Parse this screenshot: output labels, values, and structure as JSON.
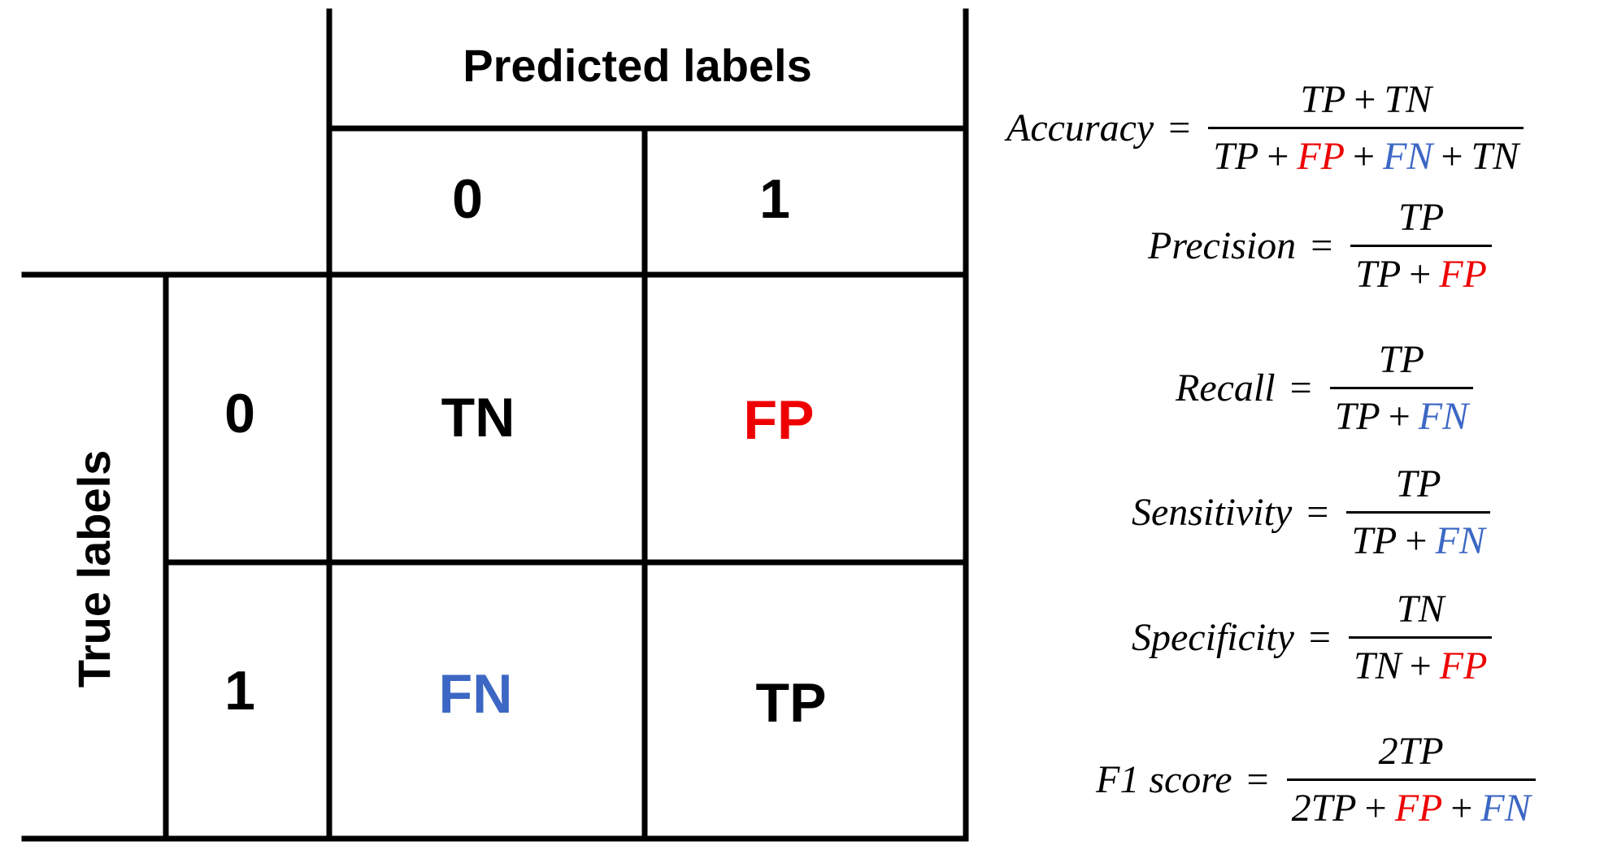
{
  "colors": {
    "fp": "#ee0000",
    "fn": "#3c67c4",
    "default": "#000000"
  },
  "matrix": {
    "predicted_header": "Predicted labels",
    "true_header": "True labels",
    "pred_0": "0",
    "pred_1": "1",
    "true_0": "0",
    "true_1": "1",
    "cell_tn": "TN",
    "cell_fp": "FP",
    "cell_fn": "FN",
    "cell_tp": "TP"
  },
  "formulas": [
    {
      "name": "Accuracy",
      "num": [
        {
          "t": "TP"
        },
        {
          "op": "+"
        },
        {
          "t": "TN"
        }
      ],
      "den": [
        {
          "t": "TP"
        },
        {
          "op": "+"
        },
        {
          "t": "FP",
          "c": "fp"
        },
        {
          "op": "+"
        },
        {
          "t": "FN",
          "c": "fn"
        },
        {
          "op": "+"
        },
        {
          "t": "TN"
        }
      ]
    },
    {
      "name": "Precision",
      "num": [
        {
          "t": "TP"
        }
      ],
      "den": [
        {
          "t": "TP"
        },
        {
          "op": "+"
        },
        {
          "t": "FP",
          "c": "fp"
        }
      ]
    },
    {
      "name": "Recall",
      "num": [
        {
          "t": "TP"
        }
      ],
      "den": [
        {
          "t": "TP"
        },
        {
          "op": "+"
        },
        {
          "t": "FN",
          "c": "fn"
        }
      ]
    },
    {
      "name": "Sensitivity",
      "num": [
        {
          "t": "TP"
        }
      ],
      "den": [
        {
          "t": "TP"
        },
        {
          "op": "+"
        },
        {
          "t": "FN",
          "c": "fn"
        }
      ]
    },
    {
      "name": "Specificity",
      "num": [
        {
          "t": "TN"
        }
      ],
      "den": [
        {
          "t": "TN"
        },
        {
          "op": "+"
        },
        {
          "t": "FP",
          "c": "fp"
        }
      ]
    },
    {
      "name": "F1 score",
      "num": [
        {
          "t": "2TP"
        }
      ],
      "den": [
        {
          "t": "2TP"
        },
        {
          "op": "+"
        },
        {
          "t": "FP",
          "c": "fp"
        },
        {
          "op": "+"
        },
        {
          "t": "FN",
          "c": "fn"
        }
      ]
    }
  ],
  "equals": "="
}
